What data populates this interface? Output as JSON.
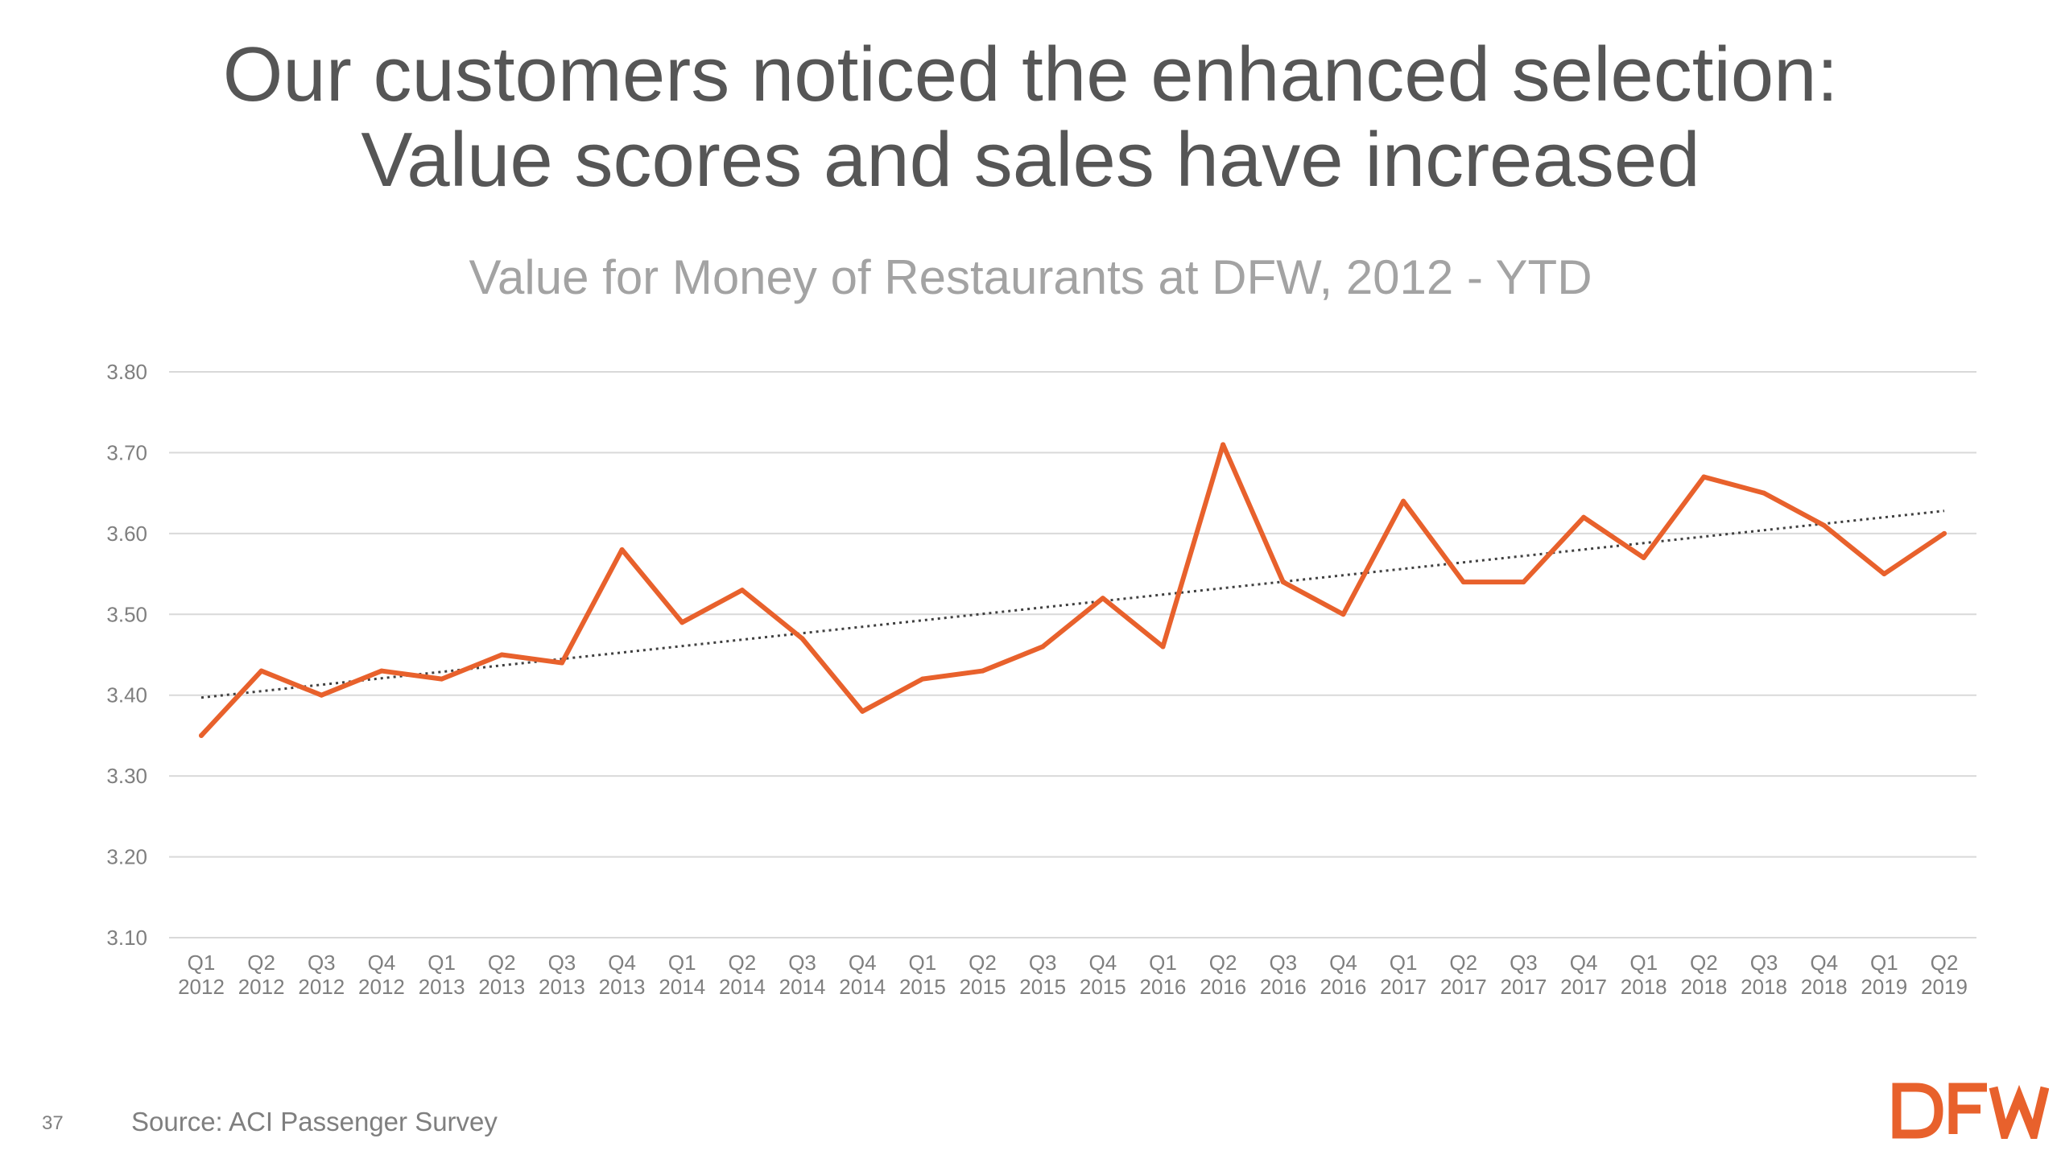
{
  "slide": {
    "title_line1": "Our customers noticed the enhanced selection:",
    "title_line2": "Value scores and sales have increased",
    "page_number": "37",
    "source": "Source:  ACI Passenger Survey",
    "logo_text": "DFW",
    "brand_color": "#e8612c"
  },
  "chart_data": {
    "type": "line",
    "title": "Value for Money of Restaurants at DFW, 2012 - YTD",
    "xlabel": "",
    "ylabel": "",
    "ylim": [
      3.1,
      3.8
    ],
    "yticks": [
      "3.80",
      "3.70",
      "3.60",
      "3.50",
      "3.40",
      "3.30",
      "3.20",
      "3.10"
    ],
    "grid": true,
    "categories": [
      [
        "Q1",
        "2012"
      ],
      [
        "Q2",
        "2012"
      ],
      [
        "Q3",
        "2012"
      ],
      [
        "Q4",
        "2012"
      ],
      [
        "Q1",
        "2013"
      ],
      [
        "Q2",
        "2013"
      ],
      [
        "Q3",
        "2013"
      ],
      [
        "Q4",
        "2013"
      ],
      [
        "Q1",
        "2014"
      ],
      [
        "Q2",
        "2014"
      ],
      [
        "Q3",
        "2014"
      ],
      [
        "Q4",
        "2014"
      ],
      [
        "Q1",
        "2015"
      ],
      [
        "Q2",
        "2015"
      ],
      [
        "Q3",
        "2015"
      ],
      [
        "Q4",
        "2015"
      ],
      [
        "Q1",
        "2016"
      ],
      [
        "Q2",
        "2016"
      ],
      [
        "Q3",
        "2016"
      ],
      [
        "Q4",
        "2016"
      ],
      [
        "Q1",
        "2017"
      ],
      [
        "Q2",
        "2017"
      ],
      [
        "Q3",
        "2017"
      ],
      [
        "Q4",
        "2017"
      ],
      [
        "Q1",
        "2018"
      ],
      [
        "Q2",
        "2018"
      ],
      [
        "Q3",
        "2018"
      ],
      [
        "Q4",
        "2018"
      ],
      [
        "Q1",
        "2019"
      ],
      [
        "Q2",
        "2019"
      ]
    ],
    "series": [
      {
        "color": "#e8612c",
        "values": [
          3.35,
          3.43,
          3.4,
          3.43,
          3.42,
          3.45,
          3.44,
          3.58,
          3.49,
          3.53,
          3.47,
          3.38,
          3.42,
          3.43,
          3.46,
          3.52,
          3.46,
          3.71,
          3.54,
          3.5,
          3.64,
          3.54,
          3.54,
          3.62,
          3.57,
          3.67,
          3.65,
          3.61,
          3.55,
          3.6
        ]
      }
    ],
    "trendline": {
      "style": "dotted",
      "color": "#404040",
      "start": 3.397,
      "end": 3.628
    }
  }
}
